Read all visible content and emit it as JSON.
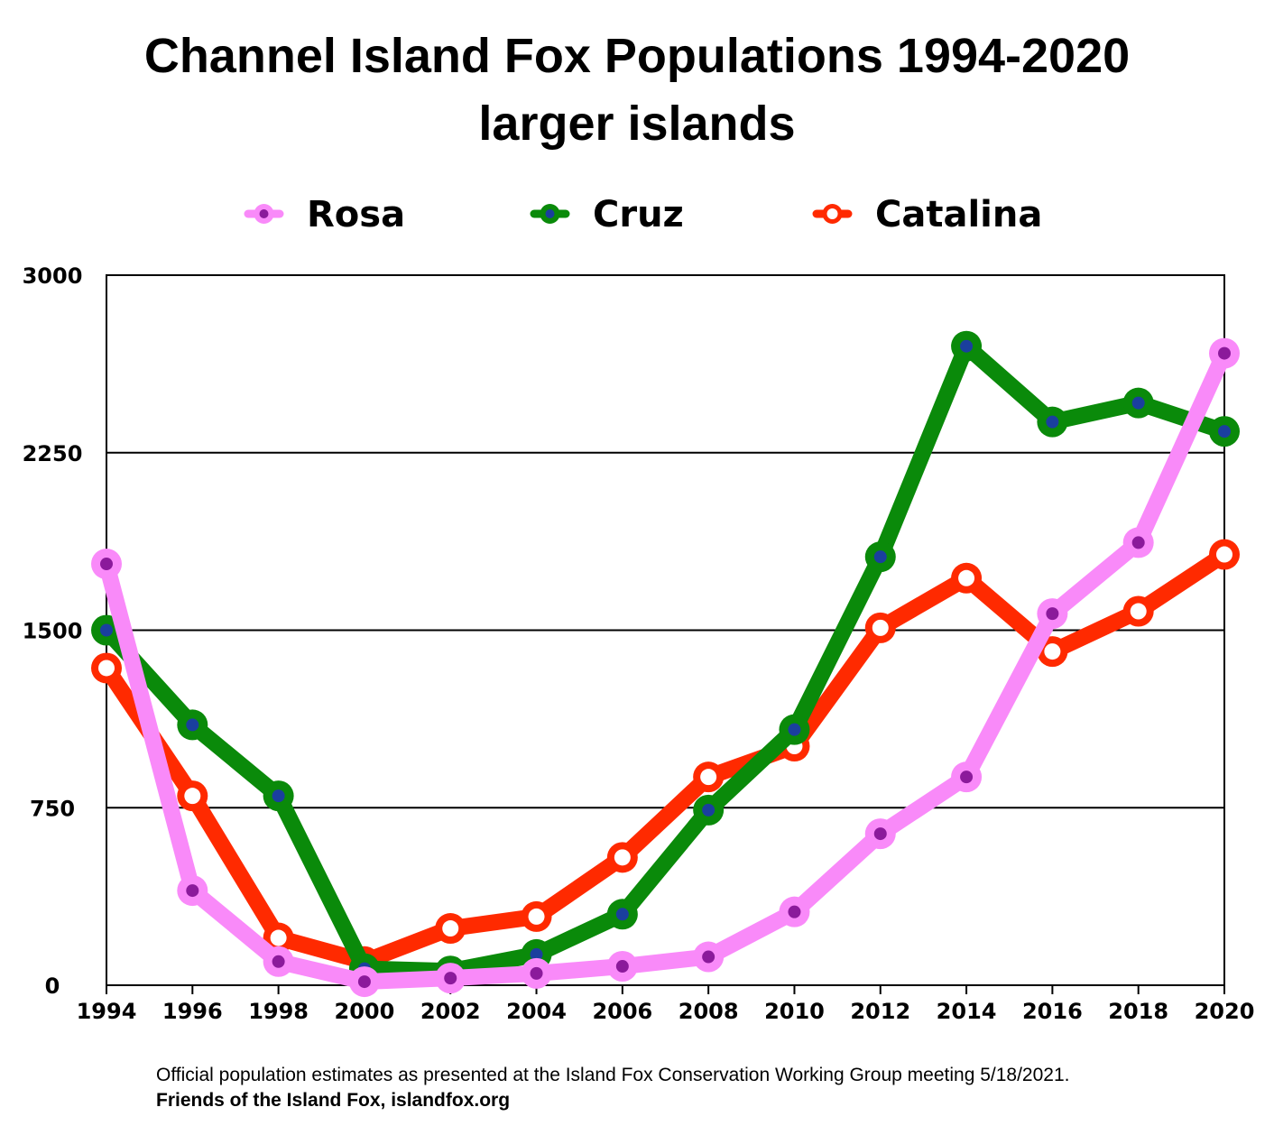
{
  "colors": {
    "rosa": "#f98af9",
    "rosa_dot": "#8b1a9b",
    "cruz": "#0a8a0a",
    "cruz_dot": "#1a3f9e",
    "catalina": "#ff2a00",
    "catalina_dot": "#ffffff",
    "grid": "#000000"
  },
  "footer": {
    "line1": "Official population estimates as presented at the Island Fox Conservation Working Group meeting 5/18/2021.",
    "line2": "Friends of the Island Fox, islandfox.org"
  },
  "chart_data": {
    "type": "line",
    "title_lines": [
      "Channel Island Fox Populations 1994-2020",
      "larger islands"
    ],
    "xlabel": "",
    "ylabel": "",
    "x": [
      1994,
      1996,
      1998,
      2000,
      2002,
      2004,
      2006,
      2008,
      2010,
      2012,
      2014,
      2016,
      2018,
      2020
    ],
    "x_tick_labels": [
      "1994",
      "1996",
      "1998",
      "2000",
      "2002",
      "2004",
      "2006",
      "2008",
      "2010",
      "2012",
      "2014",
      "2016",
      "2018",
      "2020"
    ],
    "xlim": [
      1994,
      2020
    ],
    "ylim": [
      0,
      3000
    ],
    "y_ticks": [
      0,
      750,
      1500,
      2250,
      3000
    ],
    "y_tick_labels": [
      "0",
      "750",
      "1500",
      "2250",
      "3000"
    ],
    "grid": "horizontal",
    "legend_position": "top",
    "series": [
      {
        "name": "Rosa",
        "color_key": "rosa",
        "values": [
          1780,
          400,
          100,
          15,
          30,
          50,
          80,
          120,
          310,
          640,
          880,
          1570,
          1870,
          2670
        ]
      },
      {
        "name": "Cruz",
        "color_key": "cruz",
        "values": [
          1500,
          1100,
          800,
          70,
          60,
          130,
          300,
          740,
          1080,
          1810,
          2700,
          2380,
          2460,
          2340
        ]
      },
      {
        "name": "Catalina",
        "color_key": "catalina",
        "values": [
          1340,
          800,
          200,
          100,
          240,
          290,
          540,
          880,
          1010,
          1510,
          1720,
          1410,
          1580,
          1820
        ]
      }
    ]
  }
}
